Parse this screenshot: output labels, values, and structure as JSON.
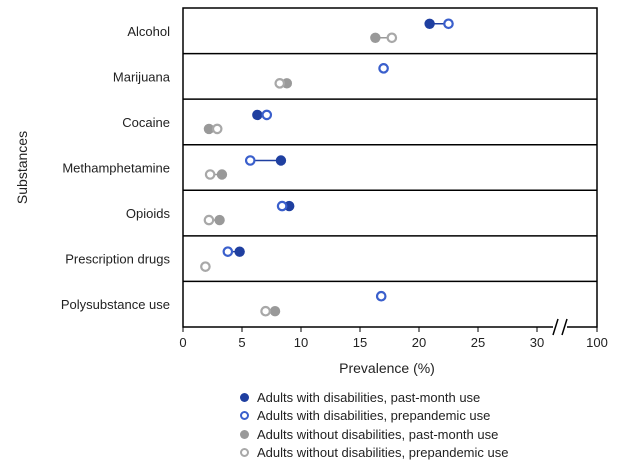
{
  "chart_data": {
    "type": "dumbbell",
    "xlabel": "Prevalence (%)",
    "ylabel": "Substances",
    "xlim": [
      0,
      100
    ],
    "axis_break": [
      32,
      38
    ],
    "x_ticks": [
      "0",
      "5",
      "10",
      "15",
      "20",
      "25",
      "30",
      "100"
    ],
    "grid": false,
    "legend_position": "bottom",
    "categories": [
      "Alcohol",
      "Marijuana",
      "Cocaine",
      "Methamphetamine",
      "Opioids",
      "Prescription drugs",
      "Polysubstance use"
    ],
    "series": [
      {
        "name": "Adults with disabilities, past-month use",
        "color": "#1f3fa0",
        "fill": "solid",
        "values": [
          20.9,
          17.0,
          6.3,
          8.3,
          9.0,
          4.8,
          16.8
        ]
      },
      {
        "name": "Adults with disabilities, prepandemic use",
        "color": "#1f3fa0",
        "fill": "open",
        "values": [
          22.5,
          17.0,
          7.1,
          5.7,
          8.4,
          3.8,
          16.8
        ]
      },
      {
        "name": "Adults without disabilities, past-month use",
        "color": "#999999",
        "fill": "solid",
        "values": [
          16.3,
          8.8,
          2.2,
          3.3,
          3.1,
          1.9,
          7.8
        ]
      },
      {
        "name": "Adults without disabilities, prepandemic use",
        "color": "#999999",
        "fill": "open",
        "values": [
          17.7,
          8.2,
          2.9,
          2.3,
          2.2,
          1.9,
          7.0
        ]
      }
    ]
  }
}
